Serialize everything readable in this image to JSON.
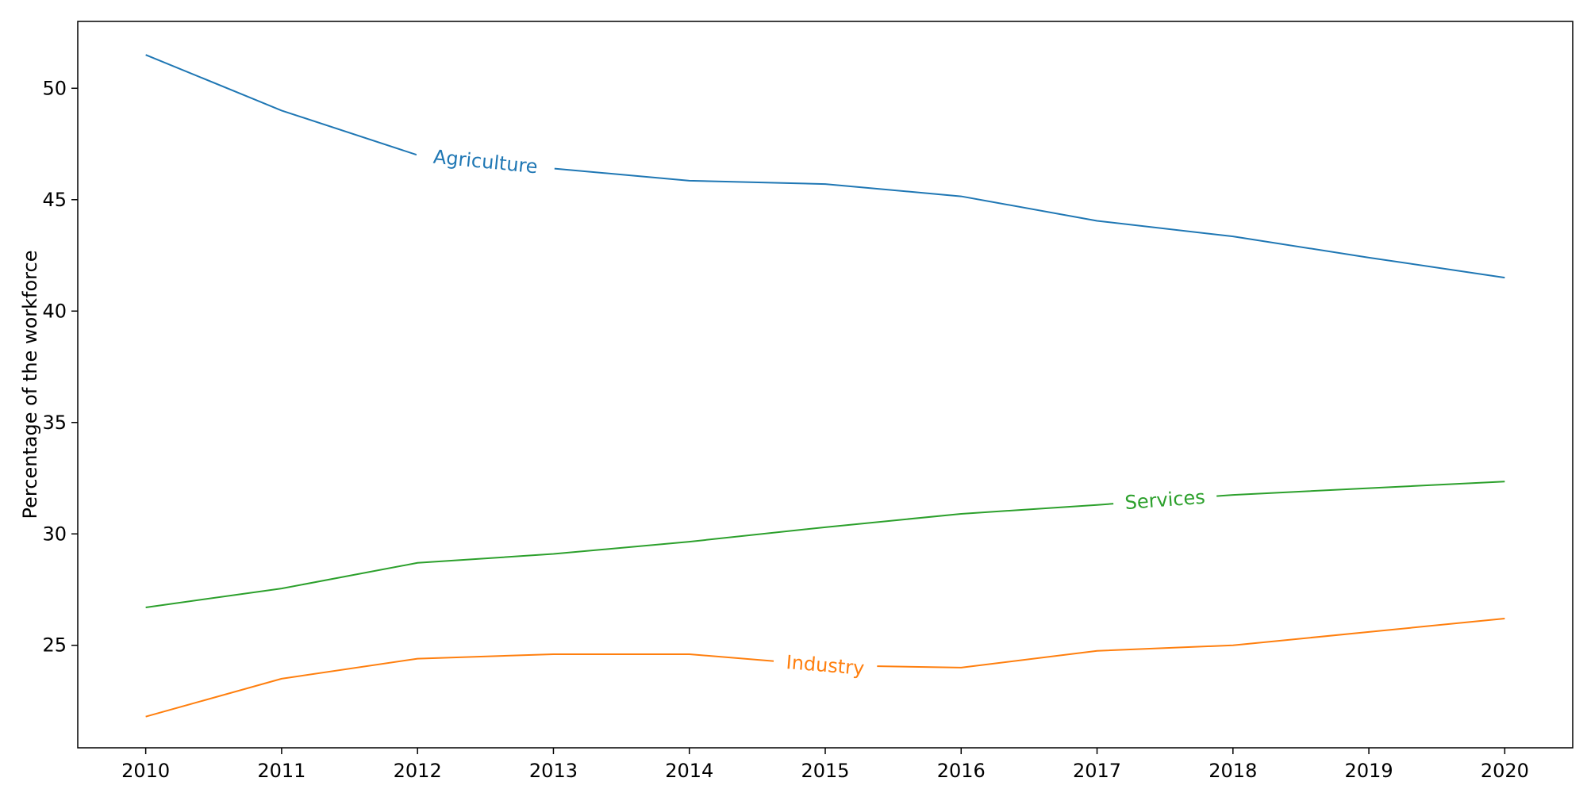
{
  "chart_data": {
    "type": "line",
    "title": "",
    "xlabel": "",
    "ylabel": "Percentage of the workforce",
    "x": [
      2010,
      2011,
      2012,
      2013,
      2014,
      2015,
      2016,
      2017,
      2018,
      2019,
      2020
    ],
    "x_tick_labels": [
      "2010",
      "2011",
      "2012",
      "2013",
      "2014",
      "2015",
      "2016",
      "2017",
      "2018",
      "2019",
      "2020"
    ],
    "y_ticks": [
      25,
      30,
      35,
      40,
      45,
      50
    ],
    "y_tick_labels": [
      "25",
      "30",
      "35",
      "40",
      "45",
      "50"
    ],
    "xlim": [
      2009.5,
      2020.5
    ],
    "ylim": [
      20.4,
      53.0
    ],
    "grid": false,
    "legend": "none",
    "series": [
      {
        "name": "Agriculture",
        "color": "#1f77b4",
        "label_at_x": 2012.5,
        "values": [
          51.5,
          49.0,
          47.0,
          46.4,
          45.85,
          45.7,
          45.15,
          44.05,
          43.35,
          42.4,
          41.5
        ]
      },
      {
        "name": "Industry",
        "color": "#ff7f0e",
        "label_at_x": 2015.0,
        "values": [
          21.8,
          23.5,
          24.4,
          24.6,
          24.6,
          24.1,
          24.0,
          24.75,
          25.0,
          25.6,
          26.2
        ]
      },
      {
        "name": "Services",
        "color": "#2ca02c",
        "label_at_x": 2017.5,
        "values": [
          26.7,
          27.55,
          28.7,
          29.1,
          29.65,
          30.3,
          30.9,
          31.3,
          31.75,
          32.05,
          32.35
        ]
      }
    ]
  }
}
